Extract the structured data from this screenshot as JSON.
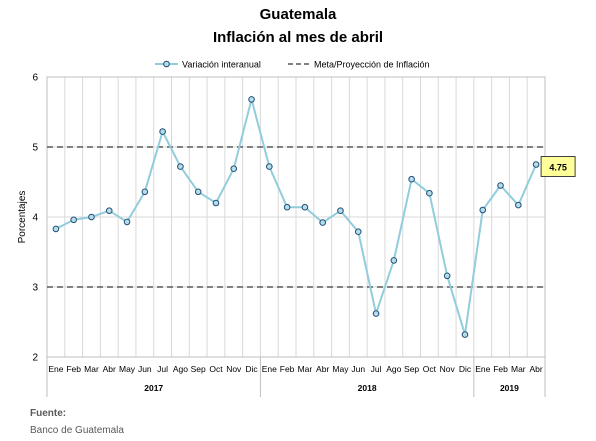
{
  "title": "Guatemala",
  "subtitle": "Inflación al mes de abril",
  "source_label": "Fuente:",
  "source_text": "Banco de Guatemala",
  "chart_data": {
    "type": "line",
    "title": "Guatemala",
    "subtitle": "Inflación al mes de abril",
    "ylabel": "Porcentajes",
    "ylim": [
      2,
      6
    ],
    "yticks": [
      2,
      3,
      4,
      5,
      6
    ],
    "grid": true,
    "legend_position": "top",
    "categories": [
      "Ene",
      "Feb",
      "Mar",
      "Abr",
      "May",
      "Jun",
      "Jul",
      "Ago",
      "Sep",
      "Oct",
      "Nov",
      "Dic",
      "Ene",
      "Feb",
      "Mar",
      "Abr",
      "May",
      "Jun",
      "Jul",
      "Ago",
      "Sep",
      "Oct",
      "Nov",
      "Dic",
      "Ene",
      "Feb",
      "Mar",
      "Abr"
    ],
    "years": [
      {
        "label": "2017",
        "start": 0,
        "end": 11
      },
      {
        "label": "2018",
        "start": 12,
        "end": 23
      },
      {
        "label": "2019",
        "start": 24,
        "end": 27
      }
    ],
    "series": [
      {
        "name": "Variación interanual",
        "color": "#92cddc",
        "values": [
          3.83,
          3.96,
          4.0,
          4.09,
          3.93,
          4.36,
          5.22,
          4.72,
          4.36,
          4.2,
          4.69,
          5.68,
          4.72,
          4.14,
          4.14,
          3.92,
          4.09,
          3.79,
          2.62,
          3.38,
          4.54,
          4.34,
          3.16,
          2.32,
          4.1,
          4.45,
          4.17,
          4.75
        ]
      },
      {
        "name": "Meta/Proyección de Inflación",
        "color": "#595959",
        "style": "dashed",
        "lines": [
          5,
          3
        ]
      }
    ],
    "annotation": {
      "label": "4.75",
      "index": 27,
      "fill": "#ffff99"
    }
  }
}
